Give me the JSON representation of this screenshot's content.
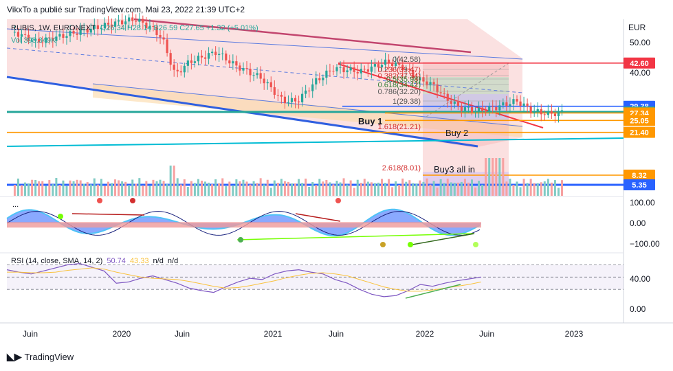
{
  "publish_info": "VikxTo a publié sur TradingView.com, Mai 23, 2022 21:39 UTC+2",
  "currency": "EUR",
  "brand": "TradingView",
  "legend": {
    "symbol": "RUBIS, 1W, EURONEXT",
    "ohlc": "O26.34 H28.14 B26.59 C27.65 +1.32 (+5.01%)",
    "volume": "Vol 398.349K",
    "oscillator_dots": "...",
    "rsi": "RSI (14, close, SMA, 14, 2)",
    "rsi_values": [
      "50.74",
      "43.33",
      "n/d",
      "n/d"
    ]
  },
  "colors": {
    "up": "#26a69a",
    "down": "#ef5350",
    "channel_blue": "#2962ff",
    "cyan": "#00bcd4",
    "red_line": "#f23645",
    "orange": "#ff9800",
    "dark_blue": "#1848cc"
  },
  "chart_data": [
    {
      "type": "candlestick",
      "pane": "price",
      "x_axis_labels": [
        "Juin",
        "2020",
        "Juin",
        "2021",
        "Juin",
        "2022",
        "Juin",
        "2023"
      ],
      "y_axis_ticks": [
        "50.00",
        "40.00"
      ],
      "ylim": [
        2,
        56
      ],
      "series_close_path": [
        [
          2019.33,
          52
        ],
        [
          2019.45,
          49
        ],
        [
          2019.6,
          51
        ],
        [
          2019.75,
          53
        ],
        [
          2019.9,
          55
        ],
        [
          2020.0,
          56
        ],
        [
          2020.1,
          53
        ],
        [
          2020.15,
          50
        ],
        [
          2020.22,
          39
        ],
        [
          2020.3,
          43
        ],
        [
          2020.45,
          46
        ],
        [
          2020.55,
          42
        ],
        [
          2020.7,
          38
        ],
        [
          2020.82,
          31
        ],
        [
          2020.9,
          31
        ],
        [
          2021.0,
          37
        ],
        [
          2021.1,
          41
        ],
        [
          2021.25,
          40
        ],
        [
          2021.4,
          43
        ],
        [
          2021.5,
          41
        ],
        [
          2021.55,
          38
        ],
        [
          2021.65,
          36
        ],
        [
          2021.72,
          32
        ],
        [
          2021.8,
          29
        ],
        [
          2021.9,
          28
        ],
        [
          2022.0,
          29
        ],
        [
          2022.05,
          30
        ],
        [
          2022.12,
          31
        ],
        [
          2022.2,
          28
        ],
        [
          2022.3,
          27
        ],
        [
          2022.38,
          27.65
        ]
      ],
      "horizontal_levels": [
        {
          "label": "42.60",
          "value": 42.6,
          "color": "#f23645"
        },
        {
          "label": "29.38",
          "value": 29.38,
          "color": "#2962ff"
        },
        {
          "label": "27.65",
          "value": 27.65,
          "color": "#26a69a"
        },
        {
          "label": "27.34",
          "value": 27.34,
          "color": "#ff9800"
        },
        {
          "label": "25.05",
          "value": 25.05,
          "color": "#ff9800"
        },
        {
          "label": "21.40",
          "value": 21.4,
          "color": "#ff9800"
        },
        {
          "label": "8.32",
          "value": 8.32,
          "color": "#ff9800"
        },
        {
          "label": "5.35",
          "value": 5.35,
          "color": "#2962ff"
        }
      ],
      "fibonacci": [
        {
          "ratio": "0",
          "value": "42.58"
        },
        {
          "ratio": "0.236",
          "value": "39.47"
        },
        {
          "ratio": "0.382",
          "value": "37.54"
        },
        {
          "ratio": "0.5",
          "value": "35.98"
        },
        {
          "ratio": "0.618",
          "value": "34.42"
        },
        {
          "ratio": "0.786",
          "value": "32.20"
        },
        {
          "ratio": "1",
          "value": "29.38"
        },
        {
          "ratio": "1.618",
          "value": "21.21"
        },
        {
          "ratio": "2.618",
          "value": "8.01"
        }
      ],
      "annotations": [
        "Buy 1",
        "Buy 2",
        "Buy3 all in"
      ]
    },
    {
      "type": "line",
      "pane": "oscillator",
      "y_axis_ticks": [
        "100.00",
        "0.00",
        "−100.00"
      ],
      "ylim": [
        -120,
        120
      ]
    },
    {
      "type": "line",
      "pane": "rsi",
      "y_axis_ticks": [
        "40.00",
        "0.00"
      ],
      "ylim": [
        -10,
        85
      ],
      "series": [
        {
          "name": "RSI",
          "values": [
            62,
            58,
            55,
            60,
            65,
            70,
            72,
            66,
            60,
            40,
            42,
            48,
            52,
            46,
            40,
            32,
            28,
            25,
            34,
            42,
            48,
            46,
            55,
            60,
            62,
            58,
            55,
            46,
            40,
            30,
            22,
            18,
            20,
            28,
            38,
            35,
            40,
            44,
            47,
            50
          ]
        },
        {
          "name": "SMA",
          "values": [
            58,
            58,
            57,
            57,
            58,
            61,
            63,
            65,
            63,
            58,
            54,
            50,
            48,
            47,
            46,
            43,
            39,
            35,
            32,
            33,
            36,
            40,
            44,
            49,
            53,
            56,
            57,
            55,
            52,
            46,
            40,
            34,
            30,
            27,
            27,
            29,
            32,
            35,
            38,
            42
          ]
        }
      ]
    }
  ]
}
